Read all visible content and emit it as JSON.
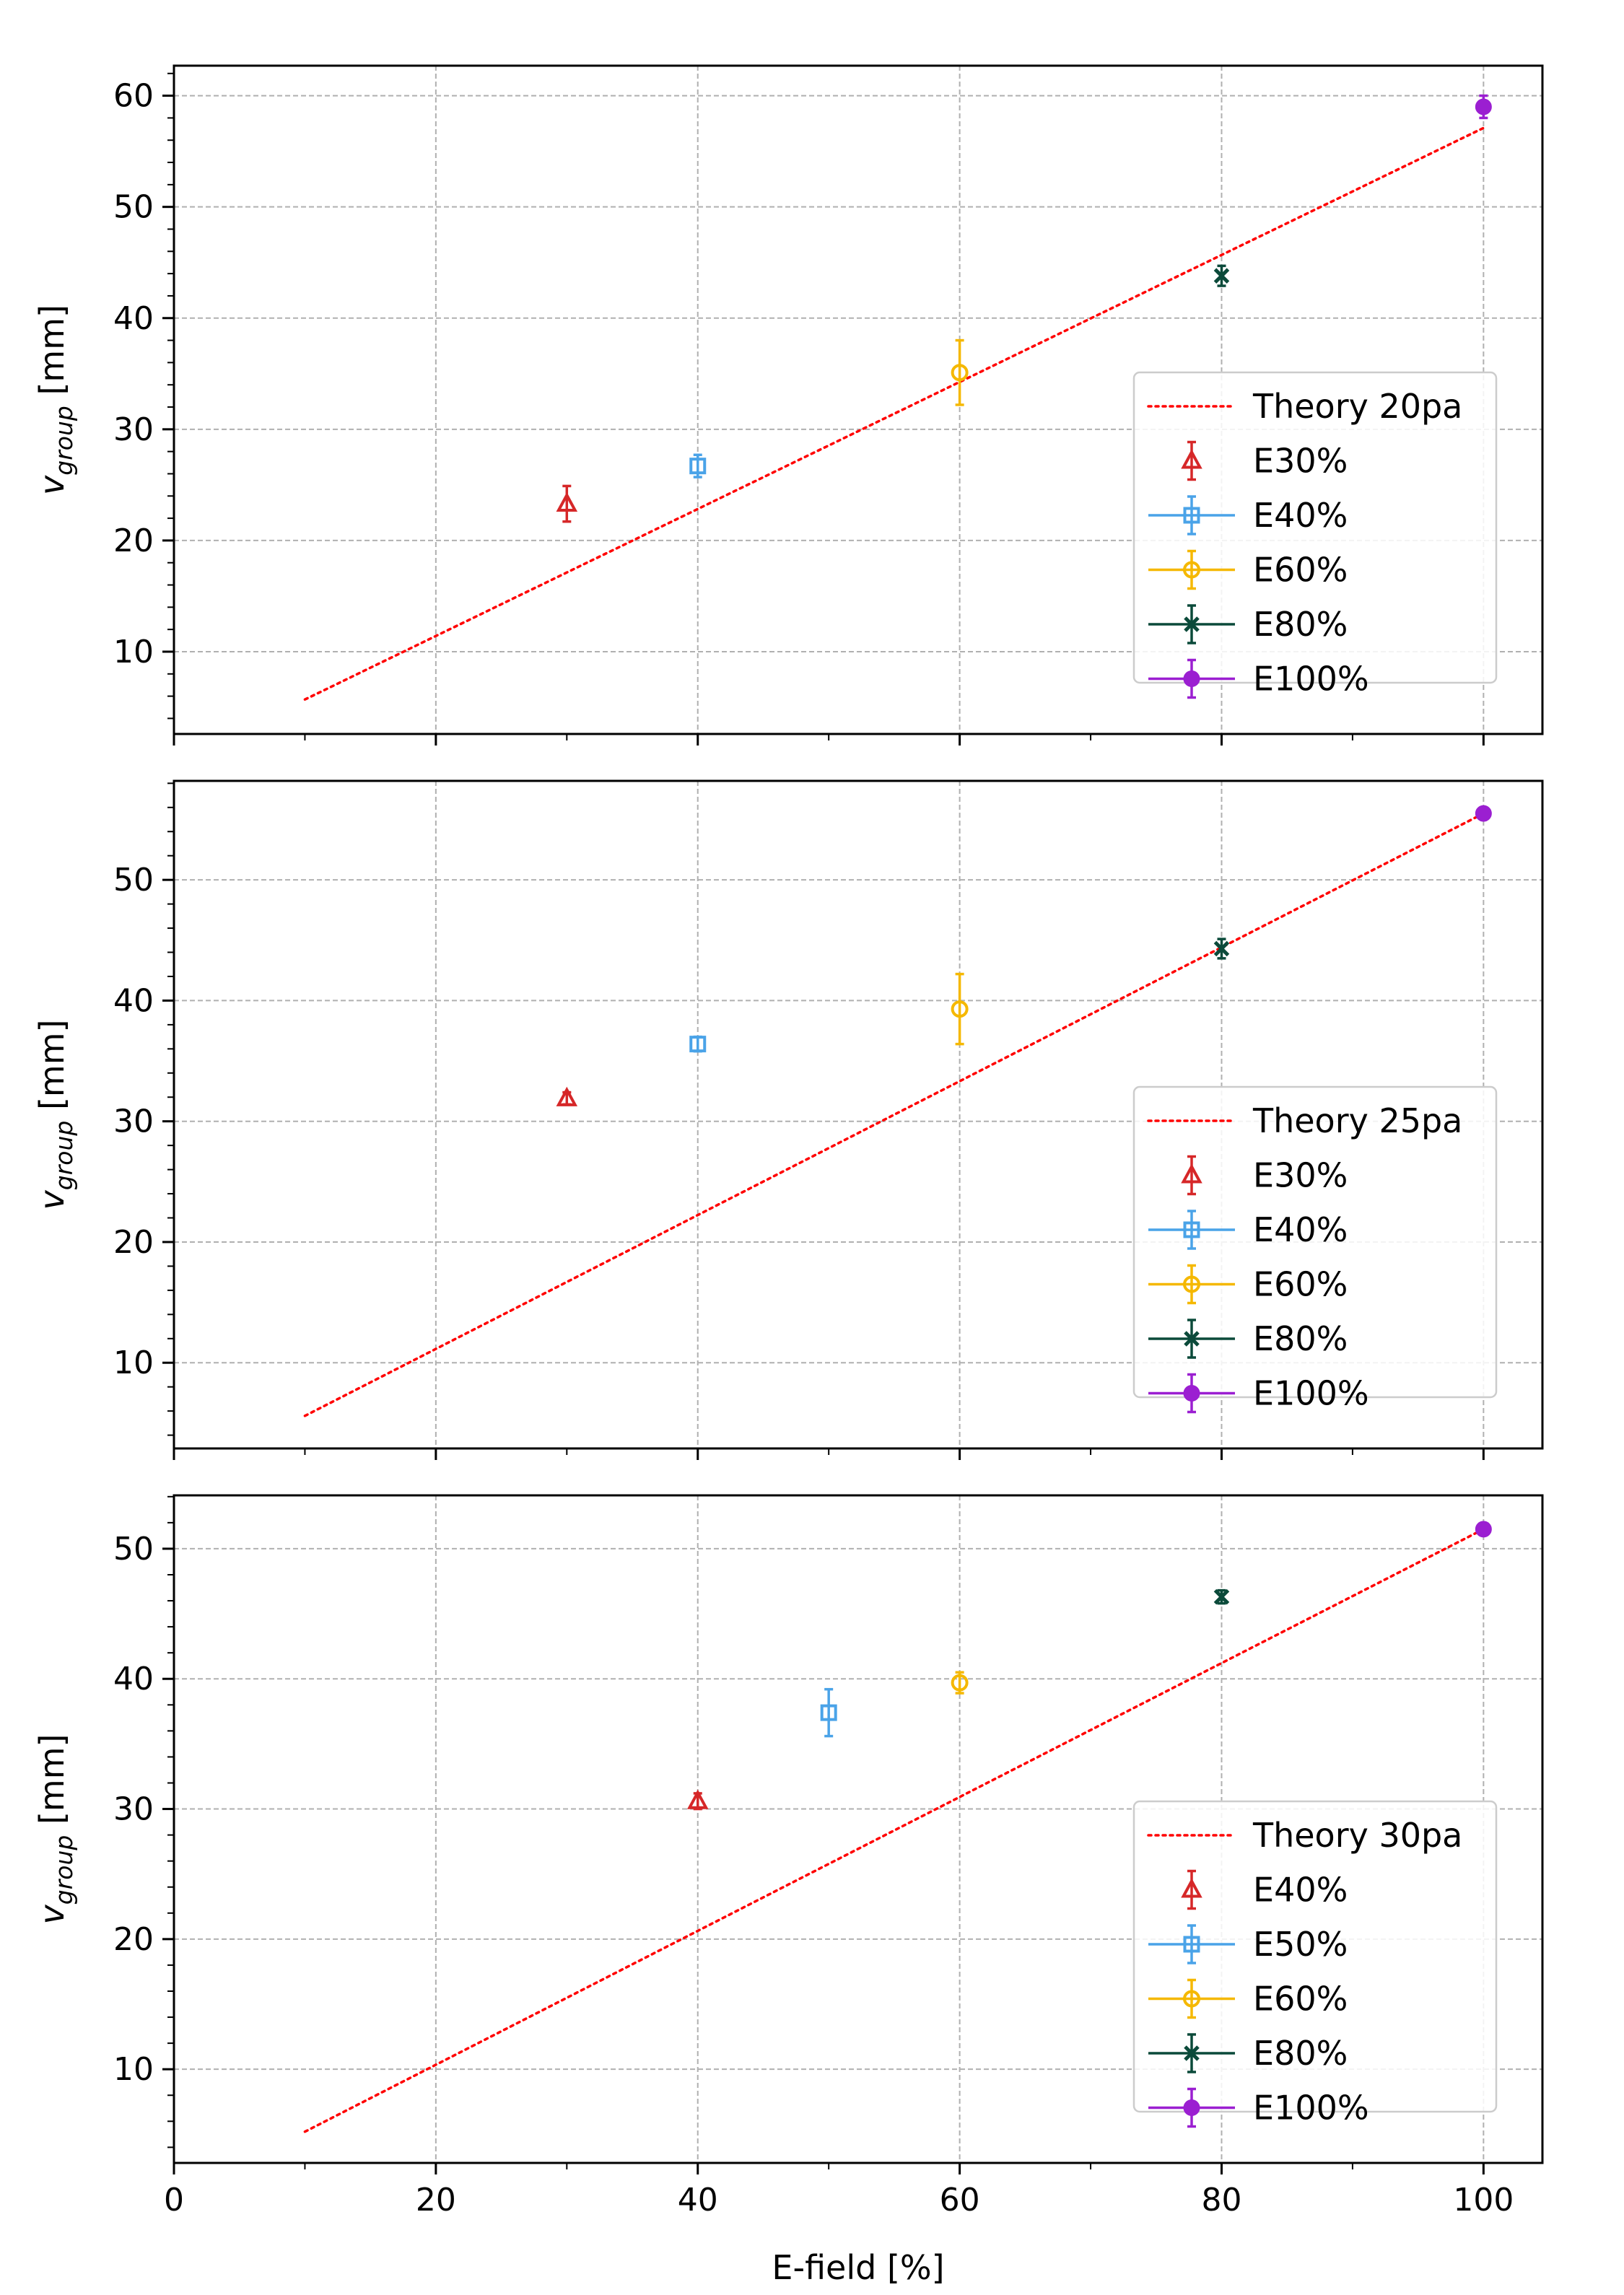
{
  "figure": {
    "xlabel": "E-field [%]",
    "ylabel_base": "v",
    "ylabel_sub": "group",
    "ylabel_unit": " [mm]"
  },
  "chart_data": [
    {
      "type": "scatter",
      "title": "",
      "xlabel": "",
      "ylabel": "v_group [mm]",
      "xlim": [
        0,
        104.5
      ],
      "ylim": [
        2.6,
        62.7
      ],
      "xticks": [
        0,
        20,
        40,
        60,
        80,
        100
      ],
      "yticks": [
        10,
        20,
        30,
        40,
        50,
        60
      ],
      "grid": true,
      "legend": "center-right",
      "theory": {
        "name": "Theory 20pa",
        "x": [
          10,
          100
        ],
        "y": [
          5.7,
          57.1
        ],
        "color": "#ff0000"
      },
      "series": [
        {
          "name": "E30%",
          "marker": "triangle",
          "color": "#d62728",
          "x": 30,
          "y": 23.3,
          "err": 1.6
        },
        {
          "name": "E40%",
          "marker": "square",
          "color": "#4aa3e8",
          "x": 40,
          "y": 26.7,
          "err": 1.0
        },
        {
          "name": "E60%",
          "marker": "circle-open",
          "color": "#f5b800",
          "x": 60,
          "y": 35.1,
          "err": 2.9
        },
        {
          "name": "E80%",
          "marker": "x",
          "color": "#0b4a3a",
          "x": 80,
          "y": 43.8,
          "err": 0.9
        },
        {
          "name": "E100%",
          "marker": "circle-filled",
          "color": "#9b1fd1",
          "x": 100,
          "y": 59.0,
          "err": 1.0
        }
      ]
    },
    {
      "type": "scatter",
      "title": "",
      "xlabel": "",
      "ylabel": "v_group [mm]",
      "xlim": [
        0,
        104.5
      ],
      "ylim": [
        2.9,
        58.2
      ],
      "xticks": [
        0,
        20,
        40,
        60,
        80,
        100
      ],
      "yticks": [
        10,
        20,
        30,
        40,
        50
      ],
      "grid": true,
      "legend": "center-right",
      "theory": {
        "name": "Theory 25pa",
        "x": [
          10,
          100
        ],
        "y": [
          5.6,
          55.5
        ],
        "color": "#ff0000"
      },
      "series": [
        {
          "name": "E30%",
          "marker": "triangle",
          "color": "#d62728",
          "x": 30,
          "y": 31.9,
          "err": 0.5
        },
        {
          "name": "E40%",
          "marker": "square",
          "color": "#4aa3e8",
          "x": 40,
          "y": 36.4,
          "err": 0.6
        },
        {
          "name": "E60%",
          "marker": "circle-open",
          "color": "#f5b800",
          "x": 60,
          "y": 39.3,
          "err": 2.9
        },
        {
          "name": "E80%",
          "marker": "x",
          "color": "#0b4a3a",
          "x": 80,
          "y": 44.3,
          "err": 0.8
        },
        {
          "name": "E100%",
          "marker": "circle-filled",
          "color": "#9b1fd1",
          "x": 100,
          "y": 55.5,
          "err": 0.4
        }
      ]
    },
    {
      "type": "scatter",
      "title": "",
      "xlabel": "E-field [%]",
      "ylabel": "v_group [mm]",
      "xlim": [
        0,
        104.5
      ],
      "ylim": [
        2.8,
        54.1
      ],
      "xticks": [
        0,
        20,
        40,
        60,
        80,
        100
      ],
      "yticks": [
        10,
        20,
        30,
        40,
        50
      ],
      "grid": true,
      "legend": "lower-right",
      "theory": {
        "name": "Theory 30pa",
        "x": [
          10,
          100
        ],
        "y": [
          5.2,
          51.5
        ],
        "color": "#ff0000"
      },
      "series": [
        {
          "name": "E40%",
          "marker": "triangle",
          "color": "#d62728",
          "x": 40,
          "y": 30.6,
          "err": 0.6
        },
        {
          "name": "E50%",
          "marker": "square",
          "color": "#4aa3e8",
          "x": 50,
          "y": 37.4,
          "err": 1.8
        },
        {
          "name": "E60%",
          "marker": "circle-open",
          "color": "#f5b800",
          "x": 60,
          "y": 39.7,
          "err": 0.8
        },
        {
          "name": "E80%",
          "marker": "x",
          "color": "#0b4a3a",
          "x": 80,
          "y": 46.3,
          "err": 0.5
        },
        {
          "name": "E100%",
          "marker": "circle-filled",
          "color": "#9b1fd1",
          "x": 100,
          "y": 51.5,
          "err": 0.4
        }
      ]
    }
  ]
}
